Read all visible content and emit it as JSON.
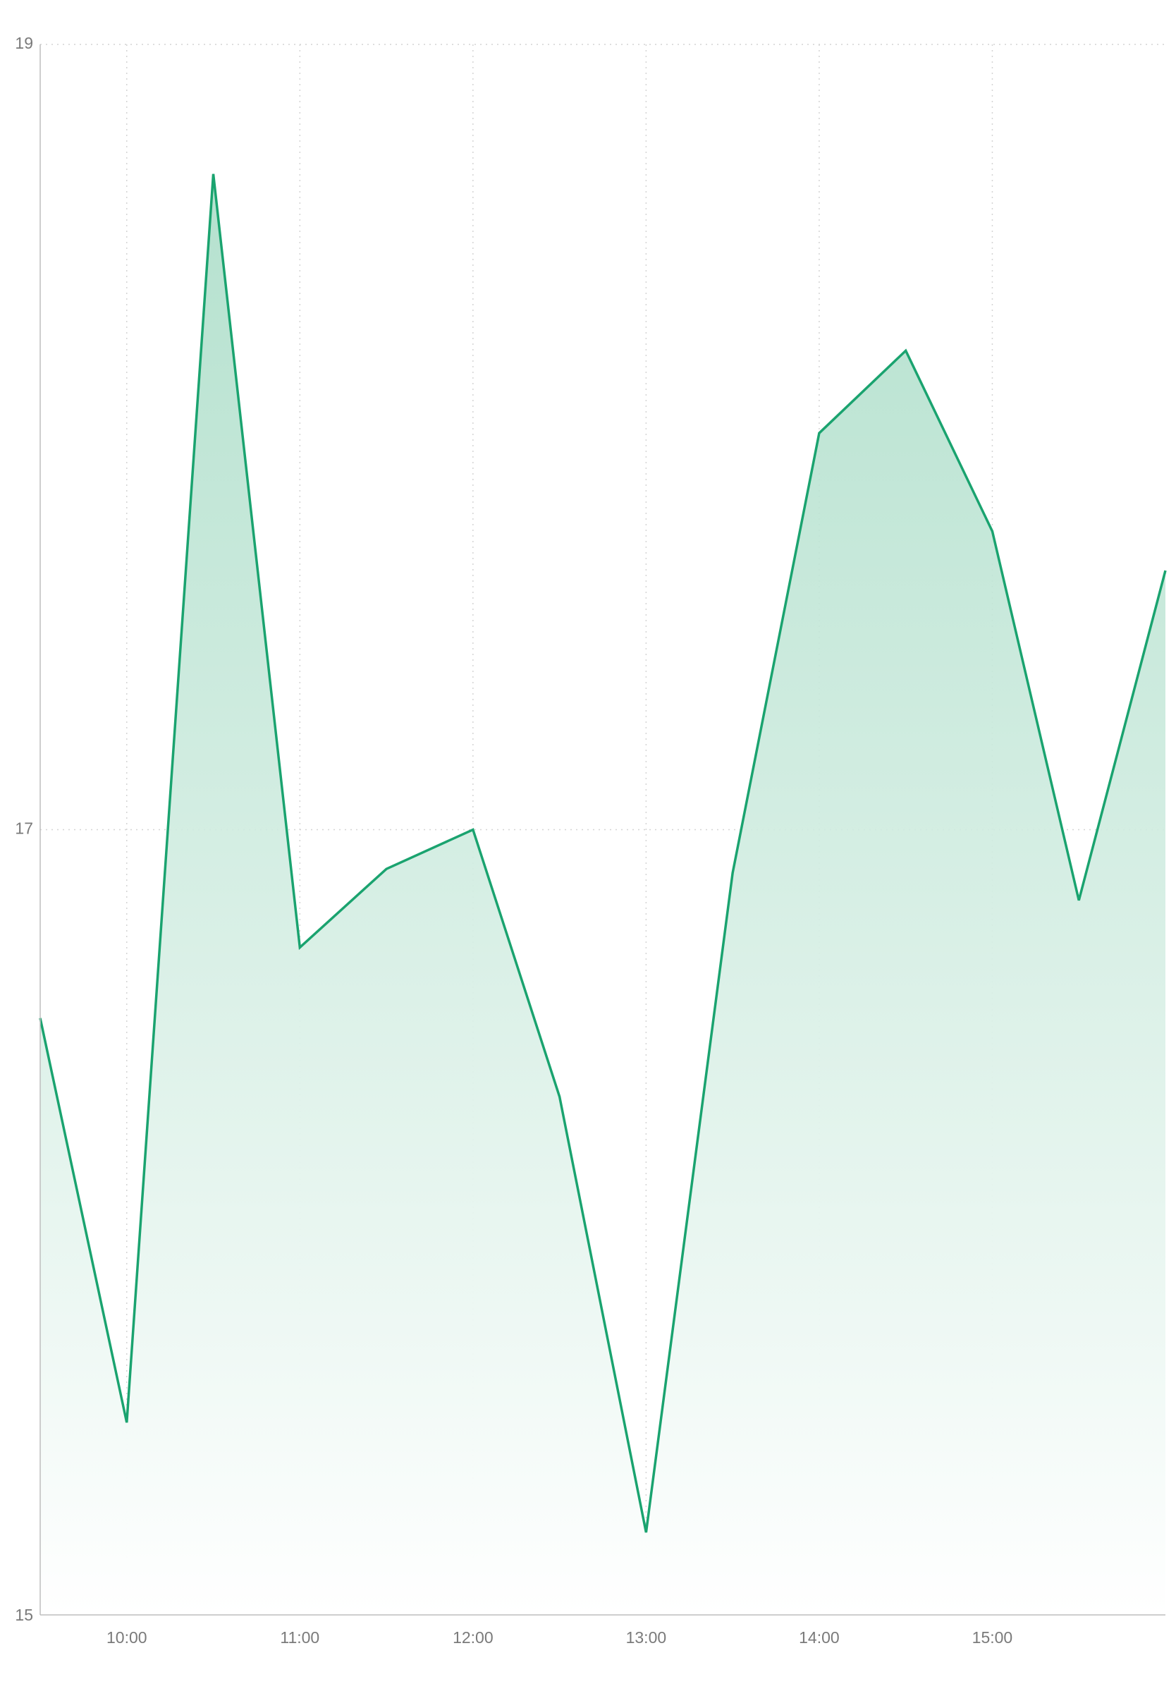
{
  "chart_data": {
    "type": "area",
    "title": "",
    "xlabel": "",
    "ylabel": "",
    "x": [
      "09:30",
      "10:00",
      "10:30",
      "11:00",
      "11:30",
      "12:00",
      "12:30",
      "13:00",
      "13:30",
      "14:00",
      "14:30",
      "15:00",
      "15:30",
      "16:00"
    ],
    "series": [
      {
        "values": [
          16.52,
          15.49,
          18.67,
          16.7,
          16.9,
          17.0,
          16.32,
          15.21,
          16.89,
          18.01,
          18.22,
          17.76,
          16.82,
          17.66
        ]
      }
    ],
    "xticks": [
      "10:00",
      "11:00",
      "12:00",
      "13:00",
      "14:00",
      "15:00"
    ],
    "yticks": [
      "15",
      "17",
      "19"
    ],
    "ylim": [
      15,
      19
    ],
    "xlim": [
      "09:30",
      "16:00"
    ],
    "grid": "dotted",
    "legend": "none",
    "colors": {
      "line": "#1aa36f",
      "fill_top": "#a8dcc6",
      "fill_bottom": "#ffffff",
      "grid": "#d4d4d4",
      "axis": "#bdbdbd",
      "tick_text": "#7a7a7a"
    }
  }
}
